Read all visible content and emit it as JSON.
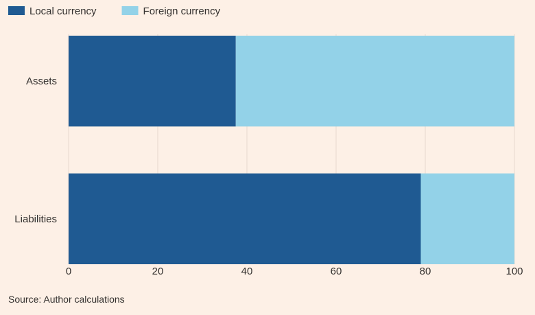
{
  "chart_data": {
    "type": "bar",
    "orientation": "horizontal",
    "stacked": true,
    "categories": [
      "Assets",
      "Liabilities"
    ],
    "series": [
      {
        "name": "Local currency",
        "values": [
          37.5,
          79
        ],
        "color": "#1f5a92"
      },
      {
        "name": "Foreign currency",
        "values": [
          62.5,
          21
        ],
        "color": "#93d2e8"
      }
    ],
    "xlim": [
      0,
      100
    ],
    "xticks": [
      0,
      20,
      40,
      60,
      80,
      100
    ],
    "grid": true,
    "legend_position": "top-left"
  },
  "source": "Source: Author calculations"
}
